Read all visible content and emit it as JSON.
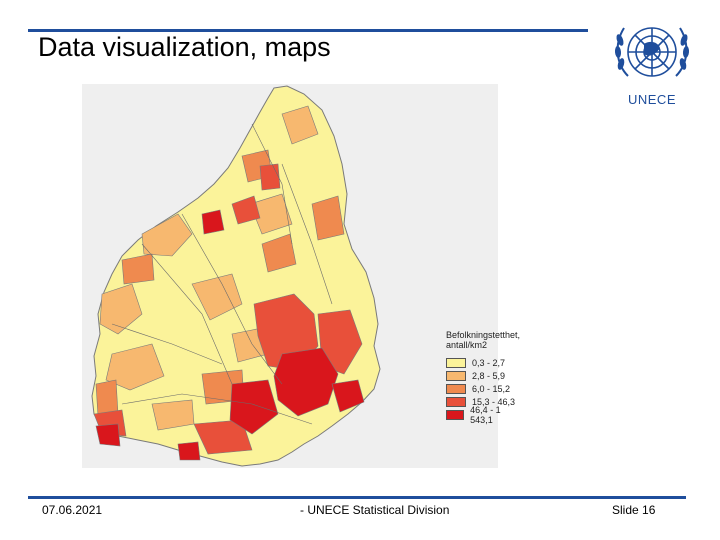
{
  "slide": {
    "title": "Data visualization, maps",
    "date": "07.06.2021",
    "organization": "- UNECE Statistical Division",
    "slide_number": "Slide 16"
  },
  "logo": {
    "text": "UNECE",
    "icon": "un-emblem-icon"
  },
  "map": {
    "region": "Southern Norway",
    "legend_title": "Befolkningstetthet, antall/km2",
    "legend": [
      {
        "label": "0,3 - 2,7",
        "color": "#fbf39a"
      },
      {
        "label": "2,8 - 5,9",
        "color": "#f7b86f"
      },
      {
        "label": "6,0 - 15,2",
        "color": "#ef8a4f"
      },
      {
        "label": "15,3 - 46,3",
        "color": "#e8503a"
      },
      {
        "label": "46,4 - 1 543,1",
        "color": "#d9161c"
      }
    ]
  }
}
